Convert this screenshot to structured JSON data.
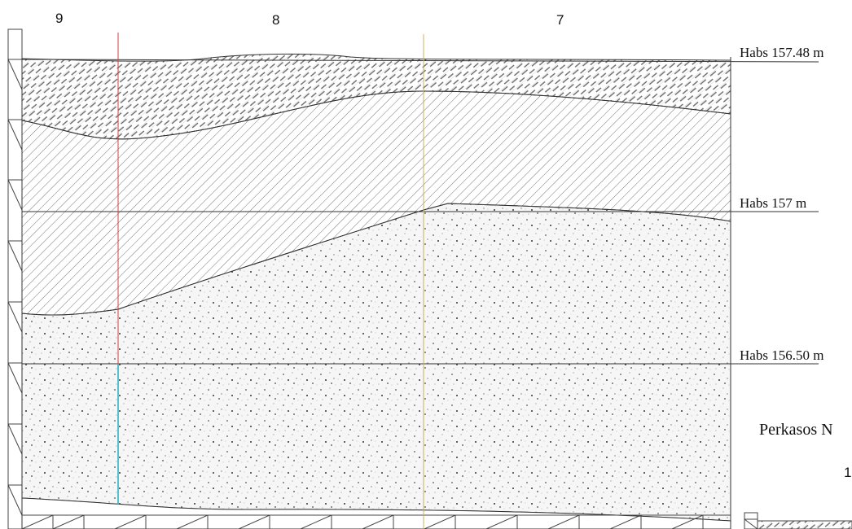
{
  "section": {
    "sector_labels": [
      "9",
      "8",
      "7"
    ],
    "elevation_labels": {
      "top": "Habs 157.48 m",
      "middle": "Habs 157 m",
      "lower": "Habs 156.50 m"
    },
    "legend": {
      "title": "Perkasos N",
      "item_number": "1"
    },
    "colors": {
      "line": "#333333",
      "red_line": "#d04040",
      "cyan_line": "#20b0c0",
      "gold_line": "#c8b060"
    }
  }
}
